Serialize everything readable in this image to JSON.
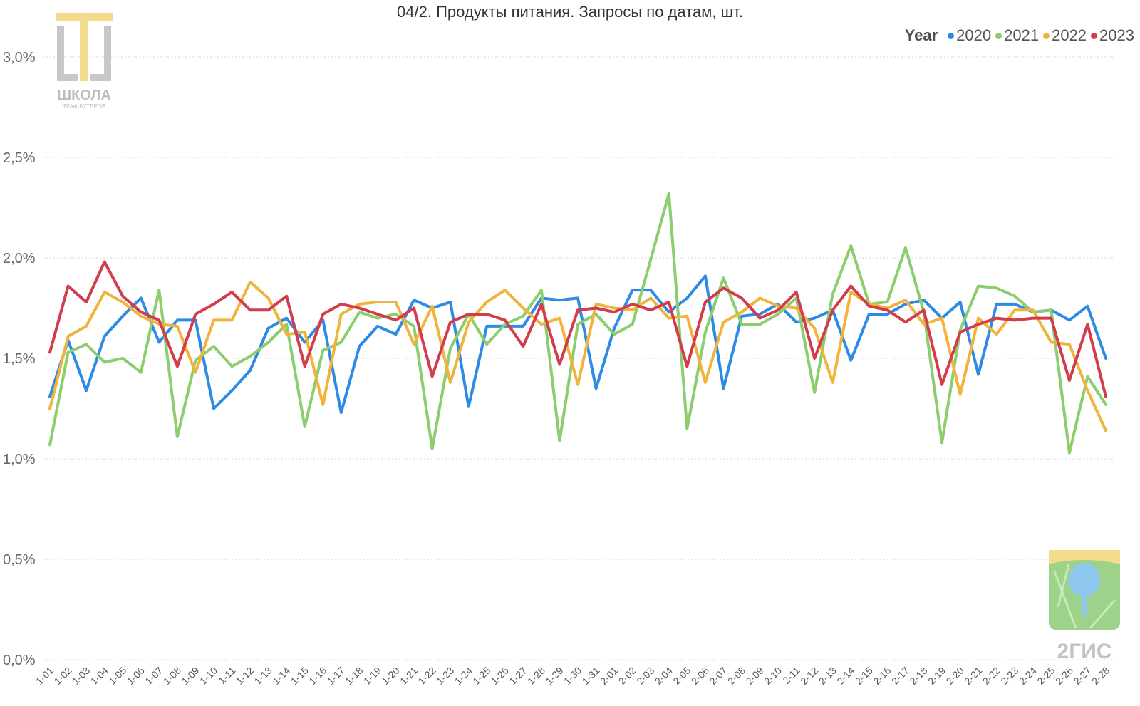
{
  "chart_data": {
    "type": "line",
    "title": "04/2. Продукты питания. Запросы по датам, шт.",
    "legend_title": "Year",
    "legend_position": "top-right",
    "grid": true,
    "ylim": [
      0,
      3.0
    ],
    "yticks": [
      "0,0%",
      "0,5%",
      "1,0%",
      "1,5%",
      "2,0%",
      "2,5%",
      "3,0%"
    ],
    "ytick_values": [
      0,
      0.5,
      1.0,
      1.5,
      2.0,
      2.5,
      3.0
    ],
    "categories": [
      "1-01",
      "1-02",
      "1-03",
      "1-04",
      "1-05",
      "1-06",
      "1-07",
      "1-08",
      "1-09",
      "1-10",
      "1-11",
      "1-12",
      "1-13",
      "1-14",
      "1-15",
      "1-16",
      "1-17",
      "1-18",
      "1-19",
      "1-20",
      "1-21",
      "1-22",
      "1-23",
      "1-24",
      "1-25",
      "1-26",
      "1-27",
      "1-28",
      "1-29",
      "1-30",
      "1-31",
      "2-01",
      "2-02",
      "2-03",
      "2-04",
      "2-05",
      "2-06",
      "2-07",
      "2-08",
      "2-09",
      "2-10",
      "2-11",
      "2-12",
      "2-13",
      "2-14",
      "2-15",
      "2-16",
      "2-17",
      "2-18",
      "2-19",
      "2-20",
      "2-21",
      "2-22",
      "2-23",
      "2-24",
      "2-25",
      "2-26",
      "2-27",
      "2-28"
    ],
    "series": [
      {
        "name": "2020",
        "color": "#2d8be6",
        "values": [
          1.31,
          1.59,
          1.34,
          1.61,
          1.71,
          1.8,
          1.58,
          1.69,
          1.69,
          1.25,
          1.34,
          1.44,
          1.65,
          1.7,
          1.58,
          1.69,
          1.23,
          1.56,
          1.66,
          1.62,
          1.79,
          1.75,
          1.78,
          1.26,
          1.66,
          1.66,
          1.66,
          1.8,
          1.79,
          1.8,
          1.35,
          1.65,
          1.84,
          1.84,
          1.73,
          1.8,
          1.91,
          1.35,
          1.71,
          1.72,
          1.77,
          1.68,
          1.7,
          1.74,
          1.49,
          1.72,
          1.72,
          1.77,
          1.79,
          1.7,
          1.78,
          1.42,
          1.77,
          1.77,
          1.73,
          1.74,
          1.69,
          1.76,
          1.5
        ]
      },
      {
        "name": "2021",
        "color": "#8ccd6e",
        "values": [
          1.07,
          1.53,
          1.57,
          1.48,
          1.5,
          1.43,
          1.84,
          1.11,
          1.49,
          1.56,
          1.46,
          1.51,
          1.58,
          1.67,
          1.16,
          1.54,
          1.58,
          1.73,
          1.7,
          1.72,
          1.66,
          1.05,
          1.55,
          1.72,
          1.57,
          1.67,
          1.71,
          1.84,
          1.09,
          1.67,
          1.72,
          1.62,
          1.67,
          1.99,
          2.32,
          1.15,
          1.63,
          1.9,
          1.67,
          1.67,
          1.72,
          1.8,
          1.33,
          1.82,
          2.06,
          1.77,
          1.78,
          2.05,
          1.73,
          1.08,
          1.64,
          1.86,
          1.85,
          1.81,
          1.73,
          1.74,
          1.03,
          1.41,
          1.27
        ]
      },
      {
        "name": "2022",
        "color": "#f0b43c",
        "values": [
          1.25,
          1.61,
          1.66,
          1.83,
          1.78,
          1.71,
          1.67,
          1.66,
          1.43,
          1.69,
          1.69,
          1.88,
          1.8,
          1.62,
          1.63,
          1.27,
          1.72,
          1.77,
          1.78,
          1.78,
          1.57,
          1.76,
          1.38,
          1.68,
          1.78,
          1.84,
          1.75,
          1.67,
          1.7,
          1.37,
          1.77,
          1.75,
          1.74,
          1.8,
          1.7,
          1.71,
          1.38,
          1.68,
          1.73,
          1.8,
          1.76,
          1.75,
          1.65,
          1.38,
          1.83,
          1.77,
          1.75,
          1.79,
          1.67,
          1.7,
          1.32,
          1.7,
          1.62,
          1.74,
          1.74,
          1.58,
          1.57,
          1.34,
          1.14
        ]
      },
      {
        "name": "2023",
        "color": "#d23c4b",
        "values": [
          1.53,
          1.86,
          1.78,
          1.98,
          1.81,
          1.73,
          1.69,
          1.46,
          1.72,
          1.77,
          1.83,
          1.74,
          1.74,
          1.81,
          1.46,
          1.72,
          1.77,
          1.75,
          1.72,
          1.69,
          1.75,
          1.41,
          1.68,
          1.72,
          1.72,
          1.69,
          1.56,
          1.77,
          1.47,
          1.74,
          1.75,
          1.73,
          1.77,
          1.74,
          1.78,
          1.46,
          1.78,
          1.85,
          1.8,
          1.7,
          1.74,
          1.83,
          1.5,
          1.74,
          1.86,
          1.76,
          1.74,
          1.68,
          1.74,
          1.37,
          1.63,
          1.67,
          1.7,
          1.69,
          1.7,
          1.7,
          1.39,
          1.67,
          1.31
        ]
      }
    ]
  },
  "logos": {
    "school": {
      "text": "ШКОЛА",
      "subtext": "ТРАФШУТЕРОВ"
    },
    "gis": {
      "text": "2ГИС"
    }
  }
}
